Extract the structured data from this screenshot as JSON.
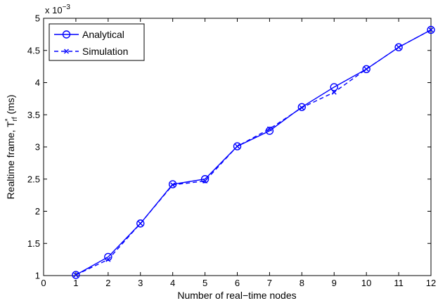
{
  "chart_data": {
    "type": "line",
    "title": "",
    "xlabel": "Number of real−time nodes",
    "ylabel_main": "Realtime frame, T",
    "ylabel_sub": "rf",
    "ylabel_sup": "*",
    "ylabel_unit": " (ms)",
    "y_scale_label": "x 10",
    "y_scale_exp": "−3",
    "xlim": [
      0,
      12
    ],
    "ylim": [
      1,
      5
    ],
    "xticks": [
      0,
      1,
      2,
      3,
      4,
      5,
      6,
      7,
      8,
      9,
      10,
      11,
      12
    ],
    "xtick_labels": [
      "0",
      "1",
      "2",
      "3",
      "4",
      "5",
      "6",
      "7",
      "8",
      "9",
      "10",
      "11",
      "12"
    ],
    "yticks": [
      1,
      1.5,
      2,
      2.5,
      3,
      3.5,
      4,
      4.5,
      5
    ],
    "ytick_labels": [
      "1",
      "1.5",
      "2",
      "2.5",
      "3",
      "3.5",
      "4",
      "4.5",
      "5"
    ],
    "grid": false,
    "legend_position": "top-left",
    "x": [
      1,
      2,
      3,
      4,
      5,
      6,
      7,
      8,
      9,
      10,
      11,
      12
    ],
    "series": [
      {
        "name": "Analytical",
        "style": "solid-circle",
        "color": "#0000ff",
        "values": [
          1.01,
          1.29,
          1.81,
          2.42,
          2.5,
          3.01,
          3.25,
          3.62,
          3.93,
          4.21,
          4.55,
          4.82
        ]
      },
      {
        "name": "Simulation",
        "style": "dashed-x",
        "color": "#0000ff",
        "values": [
          1.01,
          1.25,
          1.81,
          2.41,
          2.47,
          3.01,
          3.28,
          3.61,
          3.85,
          4.21,
          4.55,
          4.82
        ]
      }
    ]
  }
}
